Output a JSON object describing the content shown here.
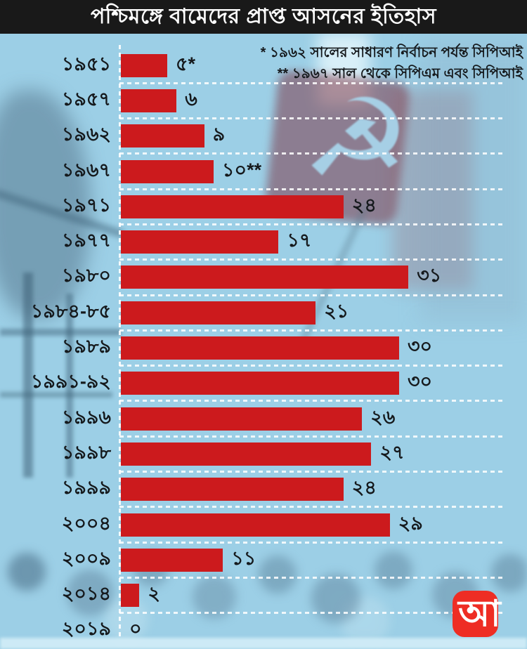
{
  "title": "পশ্চিমঙ্গে বামেদের প্রাপ্ত আসনের ইতিহাস",
  "annotation": {
    "line1": "* ১৯৬২ সালের সাধারণ নির্বাচন পর্যন্ত সিপিআই",
    "line2": "** ১৯৬৭ সাল থেকে সিপিএম এবং সিপিআই"
  },
  "logo": {
    "letter": "আ",
    "color": "#ee2d24"
  },
  "colors": {
    "background": "#9ccfe6",
    "title_bg": "#191919",
    "title_text": "#ffffff",
    "bar": "#cc1a1d",
    "text": "#15191c",
    "grid_dash": "#ffffff"
  },
  "chart_data": {
    "type": "bar",
    "orientation": "horizontal",
    "title": "পশ্চিমঙ্গে বামেদের প্রাপ্ত আসনের ইতিহাস",
    "xlabel": "",
    "ylabel": "",
    "xlim": [
      0,
      41
    ],
    "grid": "dashed-row-separators",
    "legend": false,
    "categories": [
      "১৯৫১",
      "১৯৫৭",
      "১৯৬২",
      "১৯৬৭",
      "১৯৭১",
      "১৯৭৭",
      "১৯৮০",
      "১৯৮৪-৮৫",
      "১৯৮৯",
      "১৯৯১-৯২",
      "১৯৯৬",
      "১৯৯৮",
      "১৯৯৯",
      "২০০৪",
      "২০০৯",
      "২০১৪",
      "২০১৯"
    ],
    "values": [
      5,
      6,
      9,
      10,
      24,
      17,
      31,
      21,
      30,
      30,
      26,
      27,
      24,
      29,
      11,
      2,
      0
    ],
    "value_labels": [
      "৫*",
      "৬",
      "৯",
      "১০**",
      "২৪",
      "১৭",
      "৩১",
      "২১",
      "৩০",
      "৩০",
      "২৬",
      "২৭",
      "২৪",
      "২৯",
      "১১",
      "২",
      "০"
    ],
    "footnotes": [
      "* ১৯৬২ সালের সাধারণ নির্বাচন পর্যন্ত সিপিআই",
      "** ১৯৬৭ সাল থেকে সিপিএম এবং সিপিআই"
    ]
  }
}
